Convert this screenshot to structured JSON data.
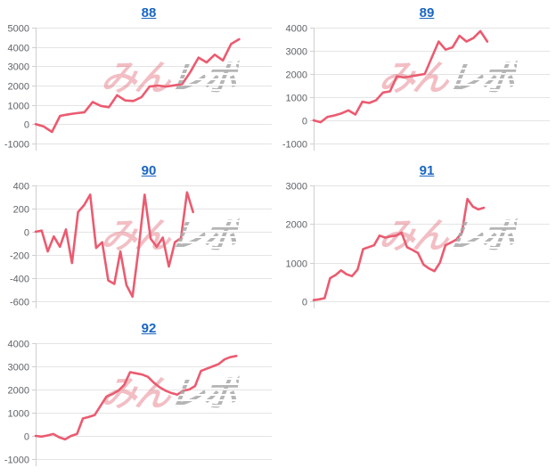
{
  "colors": {
    "line": "#eb5b70",
    "grid": "#e4e4e4",
    "axis": "#cfcfcf",
    "tick_label": "#5f6368",
    "title_link": "#1a66c2",
    "watermark_pink": "rgba(224,100,114,0.42)",
    "watermark_gray": "rgba(172,172,172,0.8)"
  },
  "watermark": {
    "part1": "みん",
    "part2": "レポ"
  },
  "chart_data": [
    {
      "id": "88",
      "title": "88",
      "type": "line",
      "ylabel": "",
      "xlabel": "",
      "ylim": [
        -1000,
        5000
      ],
      "ticks": [
        5000,
        4000,
        3000,
        2000,
        1000,
        0,
        -1000
      ],
      "x_slots": 30,
      "values": [
        0,
        -120,
        -400,
        430,
        510,
        570,
        620,
        1150,
        950,
        880,
        1500,
        1230,
        1200,
        1400,
        1950,
        2000,
        1950,
        2010,
        2080,
        2700,
        3450,
        3200,
        3600,
        3300,
        4150,
        4400
      ]
    },
    {
      "id": "89",
      "title": "89",
      "type": "line",
      "ylabel": "",
      "xlabel": "",
      "ylim": [
        -1000,
        4000
      ],
      "ticks": [
        4000,
        3000,
        2000,
        1000,
        0,
        -1000
      ],
      "x_slots": 35,
      "values": [
        0,
        -80,
        150,
        210,
        300,
        430,
        250,
        800,
        750,
        870,
        1200,
        1250,
        1900,
        1850,
        1900,
        1950,
        2000,
        2700,
        3400,
        3050,
        3150,
        3650,
        3400,
        3550,
        3850,
        3400
      ]
    },
    {
      "id": "90",
      "title": "90",
      "type": "line",
      "ylabel": "",
      "xlabel": "",
      "ylim": [
        -600,
        400
      ],
      "ticks": [
        400,
        200,
        0,
        -200,
        -400,
        -600
      ],
      "x_slots": 40,
      "values": [
        0,
        10,
        -170,
        -40,
        -130,
        20,
        -270,
        170,
        230,
        320,
        -140,
        -90,
        -420,
        -450,
        -170,
        -460,
        -560,
        -150,
        320,
        -60,
        -130,
        -50,
        -300,
        -90,
        -55,
        340,
        170
      ]
    },
    {
      "id": "91",
      "title": "91",
      "type": "line",
      "ylabel": "",
      "xlabel": "",
      "ylim": [
        0,
        3000
      ],
      "ticks": [
        3000,
        2000,
        1000,
        0
      ],
      "x_slots": 44,
      "values": [
        30,
        50,
        80,
        600,
        680,
        800,
        700,
        650,
        820,
        1350,
        1400,
        1450,
        1700,
        1650,
        1680,
        1700,
        1780,
        1400,
        1330,
        1250,
        950,
        850,
        780,
        1000,
        1450,
        1520,
        1600,
        1780,
        2650,
        2450,
        2380,
        2420
      ]
    },
    {
      "id": "92",
      "title": "92",
      "type": "line",
      "ylabel": "",
      "xlabel": "",
      "ylim": [
        -1000,
        4000
      ],
      "ticks": [
        4000,
        3000,
        2000,
        1000,
        0,
        -1000
      ],
      "x_slots": 41,
      "values": [
        0,
        -30,
        20,
        80,
        -60,
        -150,
        0,
        80,
        750,
        820,
        900,
        1300,
        1700,
        1800,
        1950,
        2200,
        2750,
        2700,
        2650,
        2550,
        2300,
        2100,
        1950,
        1850,
        1780,
        1950,
        2000,
        2150,
        2800,
        2900,
        3000,
        3100,
        3300,
        3400,
        3450
      ]
    }
  ]
}
